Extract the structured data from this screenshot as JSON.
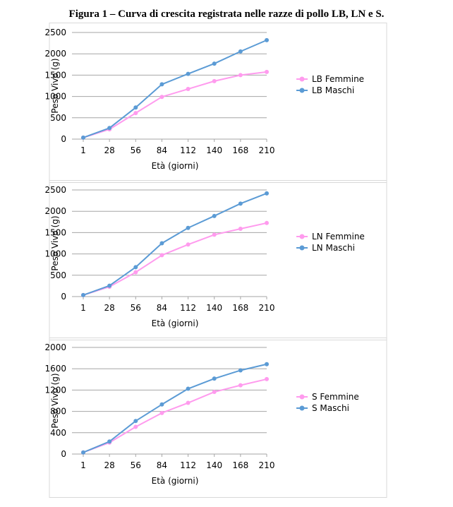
{
  "figure_title": "Figura 1 – Curva di crescita registrata nelle razze di pollo LB, LN e S.",
  "colors": {
    "female": "#ff9bee",
    "male": "#5b9bd5"
  },
  "chart_data": [
    {
      "type": "line",
      "categories": [
        "1",
        "28",
        "56",
        "84",
        "112",
        "140",
        "168",
        "210"
      ],
      "xlabel": "Età (giorni)",
      "ylabel": "Peso Vivo (g)",
      "ylim": [
        0,
        2500
      ],
      "yticks": [
        0,
        500,
        1000,
        1500,
        2000,
        2500
      ],
      "grid": true,
      "legend_position": "right",
      "series": [
        {
          "name": "LB Femmine",
          "color": "#ff9bee",
          "values": [
            35,
            230,
            610,
            990,
            1175,
            1360,
            1500,
            1575
          ]
        },
        {
          "name": "LB Maschi",
          "color": "#5b9bd5",
          "values": [
            35,
            260,
            740,
            1285,
            1530,
            1770,
            2055,
            2320
          ]
        }
      ]
    },
    {
      "type": "line",
      "categories": [
        "1",
        "28",
        "56",
        "84",
        "112",
        "140",
        "168",
        "210"
      ],
      "xlabel": "Età (giorni)",
      "ylabel": "Peso Vivo (g)",
      "ylim": [
        0,
        2500
      ],
      "yticks": [
        0,
        500,
        1000,
        1500,
        2000,
        2500
      ],
      "grid": true,
      "legend_position": "right",
      "series": [
        {
          "name": "LN Femmine",
          "color": "#ff9bee",
          "values": [
            35,
            230,
            570,
            970,
            1220,
            1450,
            1590,
            1725
          ]
        },
        {
          "name": "LN Maschi",
          "color": "#5b9bd5",
          "values": [
            35,
            255,
            690,
            1250,
            1610,
            1890,
            2180,
            2420
          ]
        }
      ]
    },
    {
      "type": "line",
      "categories": [
        "1",
        "28",
        "56",
        "84",
        "112",
        "140",
        "168",
        "210"
      ],
      "xlabel": "Età (giorni)",
      "ylabel": "Peso Vivo (g)",
      "ylim": [
        0,
        2000
      ],
      "yticks": [
        0,
        400,
        800,
        1200,
        1600,
        2000
      ],
      "grid": true,
      "legend_position": "right",
      "series": [
        {
          "name": "S Femmine",
          "color": "#ff9bee",
          "values": [
            30,
            215,
            510,
            770,
            960,
            1165,
            1290,
            1405
          ]
        },
        {
          "name": "S Maschi",
          "color": "#5b9bd5",
          "values": [
            30,
            235,
            620,
            930,
            1225,
            1415,
            1570,
            1685
          ]
        }
      ]
    }
  ]
}
